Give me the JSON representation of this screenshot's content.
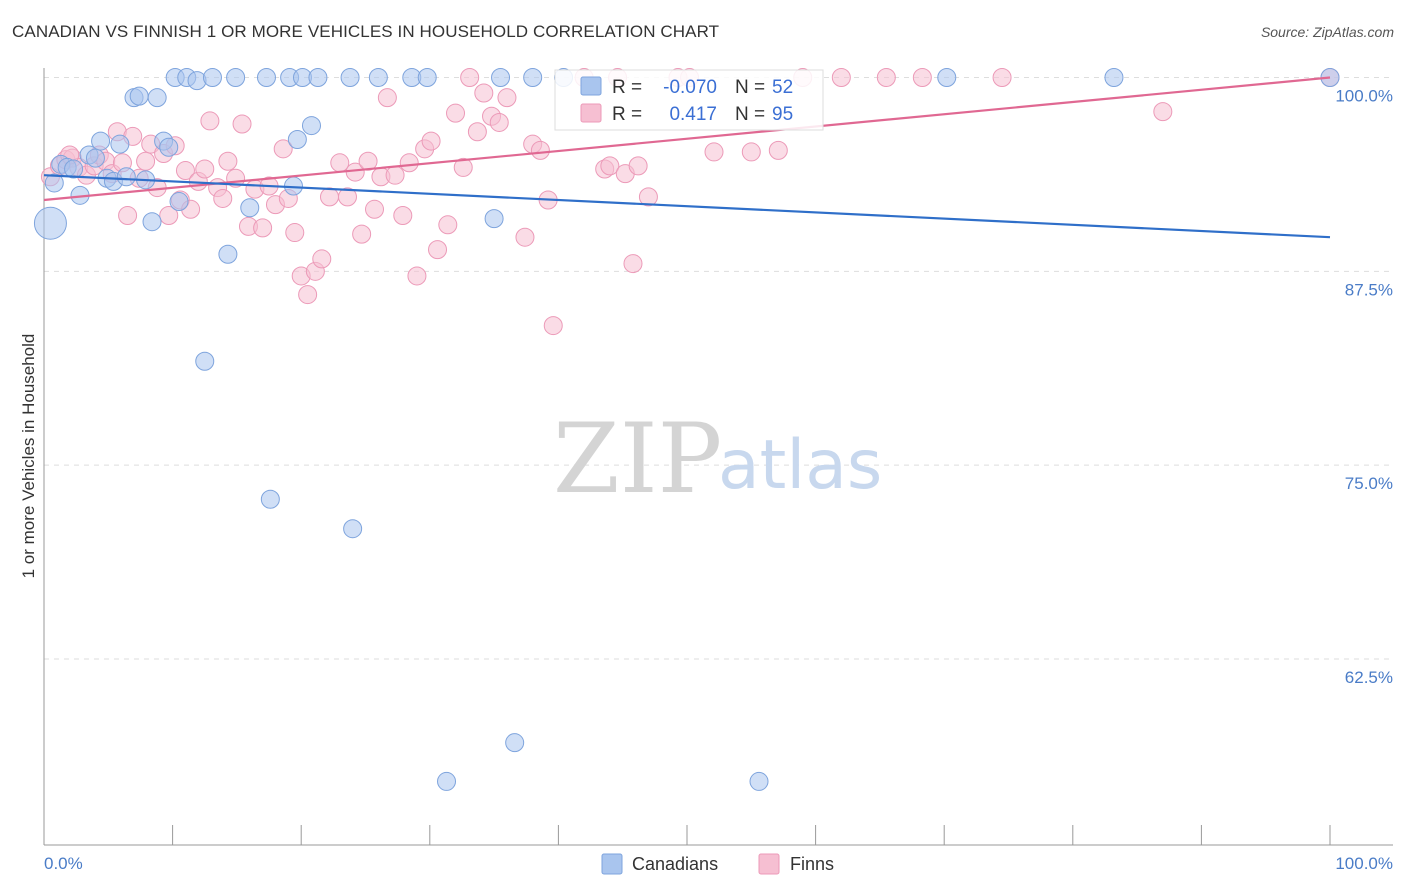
{
  "chart_data": {
    "type": "scatter",
    "title": "CANADIAN VS FINNISH 1 OR MORE VEHICLES IN HOUSEHOLD CORRELATION CHART",
    "source": "Source: ZipAtlas.com",
    "xlabel": "",
    "ylabel": "1 or more Vehicles in Household",
    "xlim": [
      0,
      100
    ],
    "ylim": [
      50.5,
      101
    ],
    "x_tick_labels": {
      "left": "0.0%",
      "right": "100.0%"
    },
    "y_ticks": [
      {
        "value": 100.0,
        "label": "100.0%"
      },
      {
        "value": 87.5,
        "label": "87.5%"
      },
      {
        "value": 75.0,
        "label": "75.0%"
      },
      {
        "value": 62.5,
        "label": "62.5%"
      }
    ],
    "grid": true,
    "legend_position": "bottom-center",
    "watermark": {
      "zip": "ZIP",
      "atlas": "atlas"
    },
    "colors": {
      "canadians": "#a9c5ee",
      "canadians_edge": "#7ea4dd",
      "canadians_line": "#2f6fc9",
      "finns": "#f6bfd2",
      "finns_edge": "#ec9ab8",
      "finns_line": "#e06892",
      "tick_label": "#4a7cc7",
      "grid": "#dddddd"
    },
    "stats": {
      "r_label": "R =",
      "n_label": "N =",
      "canadians_r": "-0.070",
      "canadians_n": "52",
      "finns_r": "0.417",
      "finns_n": "95"
    },
    "series": [
      {
        "name": "Canadians",
        "trend": {
          "x": [
            0,
            100
          ],
          "y": [
            93.7,
            89.7
          ]
        },
        "points": [
          [
            0.5,
            90.6,
            16
          ],
          [
            0.8,
            93.2,
            9
          ],
          [
            1.3,
            94.4,
            9
          ],
          [
            1.8,
            94.2,
            9
          ],
          [
            2.3,
            94.1,
            9
          ],
          [
            2.8,
            92.4,
            9
          ],
          [
            3.5,
            95.0,
            9
          ],
          [
            4.0,
            94.8,
            9
          ],
          [
            4.4,
            95.9,
            9
          ],
          [
            4.9,
            93.5,
            9
          ],
          [
            5.4,
            93.3,
            9
          ],
          [
            5.9,
            95.7,
            9
          ],
          [
            6.4,
            93.6,
            9
          ],
          [
            7.0,
            98.7,
            9
          ],
          [
            7.4,
            98.8,
            9
          ],
          [
            7.9,
            93.4,
            9
          ],
          [
            8.4,
            90.7,
            9
          ],
          [
            8.8,
            98.7,
            9
          ],
          [
            9.3,
            95.9,
            9
          ],
          [
            9.7,
            95.5,
            9
          ],
          [
            10.5,
            92.0,
            9
          ],
          [
            10.2,
            100.0,
            9
          ],
          [
            11.1,
            100.0,
            9
          ],
          [
            11.9,
            99.8,
            9
          ],
          [
            12.5,
            81.7,
            9
          ],
          [
            13.1,
            100.0,
            9
          ],
          [
            14.3,
            88.6,
            9
          ],
          [
            14.9,
            100.0,
            9
          ],
          [
            16.0,
            91.6,
            9
          ],
          [
            17.3,
            100.0,
            9
          ],
          [
            17.6,
            72.8,
            9
          ],
          [
            19.1,
            100.0,
            9
          ],
          [
            19.4,
            93.0,
            9
          ],
          [
            19.7,
            96.0,
            9
          ],
          [
            20.1,
            100.0,
            9
          ],
          [
            20.8,
            96.9,
            9
          ],
          [
            21.3,
            100.0,
            9
          ],
          [
            23.8,
            100.0,
            9
          ],
          [
            24.0,
            70.9,
            9
          ],
          [
            28.6,
            100.0,
            9
          ],
          [
            29.8,
            100.0,
            9
          ],
          [
            31.3,
            54.6,
            9
          ],
          [
            35.0,
            90.9,
            9
          ],
          [
            35.5,
            100.0,
            9
          ],
          [
            36.6,
            57.1,
            9
          ],
          [
            40.4,
            100.0,
            9
          ],
          [
            55.6,
            54.6,
            9
          ],
          [
            70.2,
            100.0,
            9
          ],
          [
            83.2,
            100.0,
            9
          ],
          [
            100.0,
            100.0,
            9
          ],
          [
            38.0,
            100.0,
            9
          ],
          [
            26.0,
            100.0,
            9
          ]
        ]
      },
      {
        "name": "Finns",
        "trend": {
          "x": [
            0,
            100
          ],
          "y": [
            92.1,
            100.0
          ]
        },
        "points": [
          [
            0.5,
            93.6,
            9
          ],
          [
            1.2,
            94.3,
            9
          ],
          [
            1.7,
            94.7,
            9
          ],
          [
            2.2,
            94.8,
            9
          ],
          [
            2.7,
            94.2,
            9
          ],
          [
            3.3,
            93.7,
            9
          ],
          [
            3.9,
            94.3,
            9
          ],
          [
            4.3,
            95.0,
            9
          ],
          [
            4.8,
            94.6,
            9
          ],
          [
            5.3,
            93.8,
            9
          ],
          [
            5.7,
            96.5,
            9
          ],
          [
            6.1,
            94.5,
            9
          ],
          [
            6.5,
            91.1,
            9
          ],
          [
            6.9,
            96.2,
            9
          ],
          [
            7.4,
            93.5,
            9
          ],
          [
            7.9,
            94.6,
            9
          ],
          [
            8.3,
            95.7,
            9
          ],
          [
            8.8,
            92.9,
            9
          ],
          [
            9.3,
            95.1,
            9
          ],
          [
            9.7,
            91.1,
            9
          ],
          [
            10.2,
            95.6,
            9
          ],
          [
            10.6,
            92.1,
            9
          ],
          [
            11.0,
            94.0,
            9
          ],
          [
            11.4,
            91.5,
            9
          ],
          [
            12.0,
            93.3,
            9
          ],
          [
            12.5,
            94.1,
            9
          ],
          [
            12.9,
            97.2,
            9
          ],
          [
            13.5,
            92.9,
            9
          ],
          [
            13.9,
            92.2,
            9
          ],
          [
            14.3,
            94.6,
            9
          ],
          [
            14.9,
            93.5,
            9
          ],
          [
            15.4,
            97.0,
            9
          ],
          [
            15.9,
            90.4,
            9
          ],
          [
            16.4,
            92.8,
            9
          ],
          [
            17.0,
            90.3,
            9
          ],
          [
            17.5,
            93.0,
            9
          ],
          [
            18.0,
            91.8,
            9
          ],
          [
            18.6,
            95.4,
            9
          ],
          [
            19.0,
            92.2,
            9
          ],
          [
            19.5,
            90.0,
            9
          ],
          [
            20.0,
            87.2,
            9
          ],
          [
            20.5,
            86.0,
            9
          ],
          [
            21.1,
            87.5,
            9
          ],
          [
            21.6,
            88.3,
            9
          ],
          [
            22.2,
            92.3,
            9
          ],
          [
            23.0,
            94.5,
            9
          ],
          [
            23.6,
            92.3,
            9
          ],
          [
            24.2,
            93.9,
            9
          ],
          [
            24.7,
            89.9,
            9
          ],
          [
            25.2,
            94.6,
            9
          ],
          [
            25.7,
            91.5,
            9
          ],
          [
            26.2,
            93.6,
            9
          ],
          [
            26.7,
            98.7,
            9
          ],
          [
            27.3,
            93.7,
            9
          ],
          [
            27.9,
            91.1,
            9
          ],
          [
            28.4,
            94.5,
            9
          ],
          [
            29.0,
            87.2,
            9
          ],
          [
            29.6,
            95.4,
            9
          ],
          [
            30.1,
            95.9,
            9
          ],
          [
            30.6,
            88.9,
            9
          ],
          [
            31.4,
            90.5,
            9
          ],
          [
            32.0,
            97.7,
            9
          ],
          [
            32.6,
            94.2,
            9
          ],
          [
            33.1,
            100.0,
            9
          ],
          [
            33.7,
            96.5,
            9
          ],
          [
            34.2,
            99.0,
            9
          ],
          [
            34.8,
            97.5,
            9
          ],
          [
            35.4,
            97.1,
            9
          ],
          [
            36.0,
            98.7,
            9
          ],
          [
            37.4,
            89.7,
            9
          ],
          [
            38.0,
            95.7,
            9
          ],
          [
            38.6,
            95.3,
            9
          ],
          [
            39.2,
            92.1,
            9
          ],
          [
            39.6,
            84.0,
            9
          ],
          [
            42.0,
            100.0,
            9
          ],
          [
            43.6,
            94.1,
            9
          ],
          [
            44.0,
            94.3,
            9
          ],
          [
            44.6,
            100.0,
            9
          ],
          [
            45.2,
            93.8,
            9
          ],
          [
            45.8,
            88.0,
            9
          ],
          [
            46.2,
            94.3,
            9
          ],
          [
            47.0,
            92.3,
            9
          ],
          [
            49.3,
            100.0,
            9
          ],
          [
            50.2,
            100.0,
            9
          ],
          [
            52.1,
            95.2,
            9
          ],
          [
            55.0,
            95.2,
            9
          ],
          [
            57.1,
            95.3,
            9
          ],
          [
            59.0,
            100.0,
            9
          ],
          [
            62.0,
            100.0,
            9
          ],
          [
            65.5,
            100.0,
            9
          ],
          [
            68.3,
            100.0,
            9
          ],
          [
            74.5,
            100.0,
            9
          ],
          [
            87.0,
            97.8,
            9
          ],
          [
            100.0,
            100.0,
            9
          ],
          [
            2.0,
            95.0,
            9
          ]
        ]
      }
    ]
  }
}
